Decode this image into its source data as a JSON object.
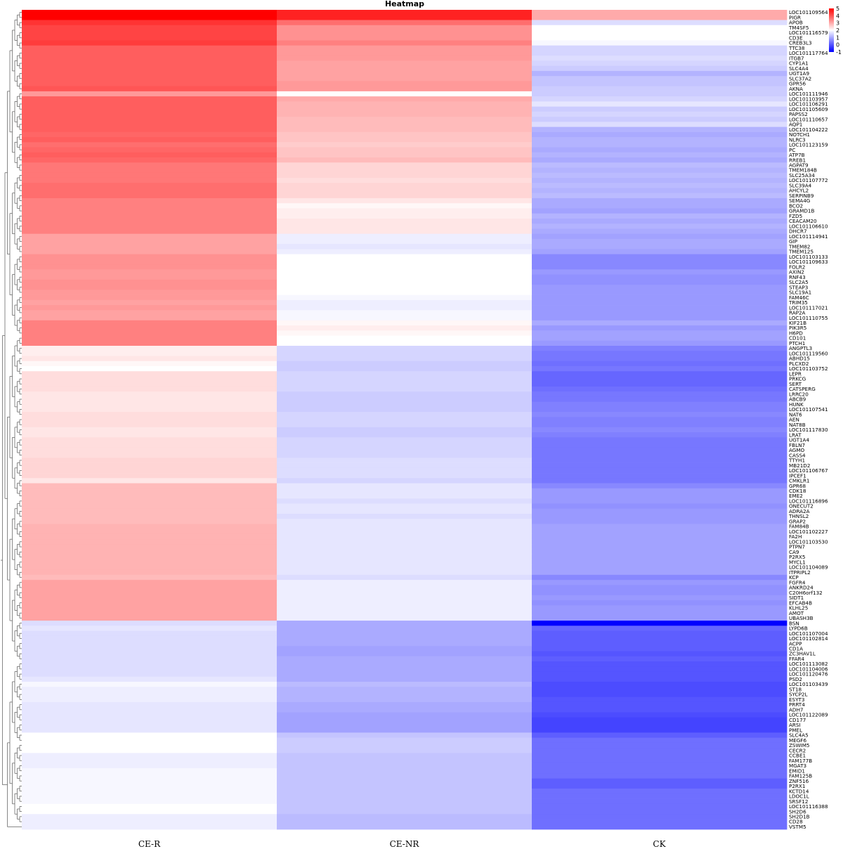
{
  "chart_data": {
    "type": "heatmap",
    "title": "Heatmap",
    "columns": [
      "CE-R",
      "CE-NR",
      "CK"
    ],
    "color_scale": {
      "min": -1,
      "mid": 2,
      "max": 5,
      "low_color": "#0000ff",
      "mid_color": "#ffffff",
      "high_color": "#ff0000",
      "ticks": [
        5,
        4,
        3,
        2,
        1,
        0,
        -1
      ]
    },
    "dendrogram": "left",
    "rows": [
      {
        "gene": "LOC101109564",
        "values": [
          5.0,
          4.6,
          3.0
        ]
      },
      {
        "gene": "PIGR",
        "values": [
          5.0,
          4.6,
          3.0
        ]
      },
      {
        "gene": "APOB",
        "values": [
          4.4,
          3.7,
          1.6
        ]
      },
      {
        "gene": "TM4SF5",
        "values": [
          4.2,
          3.3,
          2.0
        ]
      },
      {
        "gene": "LOC101116579",
        "values": [
          4.2,
          3.3,
          2.0
        ]
      },
      {
        "gene": "CD3E",
        "values": [
          4.2,
          3.3,
          2.0
        ]
      },
      {
        "gene": "CREB3L3",
        "values": [
          4.3,
          3.5,
          1.9
        ]
      },
      {
        "gene": "TTC38",
        "values": [
          3.9,
          3.2,
          1.5
        ]
      },
      {
        "gene": "LOC101117764",
        "values": [
          3.9,
          3.2,
          1.5
        ]
      },
      {
        "gene": "ITGB7",
        "values": [
          3.9,
          3.2,
          1.6
        ]
      },
      {
        "gene": "CYP1A1",
        "values": [
          3.9,
          3.1,
          1.5
        ]
      },
      {
        "gene": "SLC4A4",
        "values": [
          3.9,
          3.1,
          1.4
        ]
      },
      {
        "gene": "UGT1A9",
        "values": [
          3.9,
          3.1,
          1.1
        ]
      },
      {
        "gene": "SLC37A2",
        "values": [
          3.9,
          3.1,
          1.3
        ]
      },
      {
        "gene": "GPR56",
        "values": [
          3.9,
          3.2,
          1.3
        ]
      },
      {
        "gene": "AKNA",
        "values": [
          4.0,
          3.2,
          1.4
        ]
      },
      {
        "gene": "LOC101111946",
        "values": [
          3.2,
          2.0,
          1.4
        ]
      },
      {
        "gene": "LOC101103957",
        "values": [
          3.9,
          3.0,
          1.5
        ]
      },
      {
        "gene": "LOC101106291",
        "values": [
          3.9,
          2.9,
          1.7
        ]
      },
      {
        "gene": "LOC101105609",
        "values": [
          3.9,
          2.9,
          1.4
        ]
      },
      {
        "gene": "PAPSS2",
        "values": [
          3.9,
          2.9,
          1.5
        ]
      },
      {
        "gene": "LOC101110657",
        "values": [
          3.9,
          2.8,
          1.4
        ]
      },
      {
        "gene": "AQP1",
        "values": [
          3.9,
          2.8,
          1.6
        ]
      },
      {
        "gene": "LOC101104222",
        "values": [
          3.9,
          2.8,
          1.1
        ]
      },
      {
        "gene": "NOTCH1",
        "values": [
          3.8,
          2.7,
          1.0
        ]
      },
      {
        "gene": "NLRC3",
        "values": [
          3.9,
          2.7,
          1.1
        ]
      },
      {
        "gene": "LOC101123159",
        "values": [
          3.7,
          2.6,
          1.1
        ]
      },
      {
        "gene": "PC",
        "values": [
          3.8,
          2.7,
          1.0
        ]
      },
      {
        "gene": "ATP7B",
        "values": [
          3.9,
          2.7,
          1.1
        ]
      },
      {
        "gene": "RREB1",
        "values": [
          3.8,
          2.8,
          1.0
        ]
      },
      {
        "gene": "AGPAT9",
        "values": [
          3.6,
          2.5,
          1.2
        ]
      },
      {
        "gene": "TMEM184B",
        "values": [
          3.6,
          2.5,
          1.1
        ]
      },
      {
        "gene": "SLC25A34",
        "values": [
          3.6,
          2.5,
          1.2
        ]
      },
      {
        "gene": "LOC101107772",
        "values": [
          3.6,
          2.4,
          1.1
        ]
      },
      {
        "gene": "SLC39A4",
        "values": [
          3.7,
          2.5,
          1.2
        ]
      },
      {
        "gene": "AHCYL2",
        "values": [
          3.7,
          2.5,
          1.1
        ]
      },
      {
        "gene": "SERPINB9",
        "values": [
          3.7,
          2.5,
          1.2
        ]
      },
      {
        "gene": "SEMA4G",
        "values": [
          3.5,
          2.3,
          1.0
        ]
      },
      {
        "gene": "BCO2",
        "values": [
          3.5,
          2.1,
          1.0
        ]
      },
      {
        "gene": "GRAMD1B",
        "values": [
          3.5,
          2.2,
          0.9
        ]
      },
      {
        "gene": "FZD5",
        "values": [
          3.5,
          2.2,
          1.1
        ]
      },
      {
        "gene": "CEACAM20",
        "values": [
          3.5,
          2.3,
          1.0
        ]
      },
      {
        "gene": "LOC101106610",
        "values": [
          3.5,
          2.3,
          1.1
        ]
      },
      {
        "gene": "DHCR7",
        "values": [
          3.5,
          2.3,
          1.0
        ]
      },
      {
        "gene": "LOC101114941",
        "values": [
          3.1,
          1.8,
          0.9
        ]
      },
      {
        "gene": "GIP",
        "values": [
          3.1,
          1.8,
          1.0
        ]
      },
      {
        "gene": "TMEM82",
        "values": [
          3.1,
          1.7,
          1.0
        ]
      },
      {
        "gene": "TMEM125",
        "values": [
          3.1,
          1.8,
          0.9
        ]
      },
      {
        "gene": "LOC101103133",
        "values": [
          3.3,
          2.0,
          0.6
        ]
      },
      {
        "gene": "LOC101109633",
        "values": [
          3.3,
          2.0,
          0.6
        ]
      },
      {
        "gene": "FOLR2",
        "values": [
          3.3,
          2.0,
          0.6
        ]
      },
      {
        "gene": "AXIN2",
        "values": [
          3.2,
          2.0,
          0.8
        ]
      },
      {
        "gene": "RNF43",
        "values": [
          3.2,
          2.0,
          0.7
        ]
      },
      {
        "gene": "SLC2A5",
        "values": [
          3.3,
          2.0,
          0.7
        ]
      },
      {
        "gene": "STEAP3",
        "values": [
          3.3,
          2.0,
          0.8
        ]
      },
      {
        "gene": "SLC19A1",
        "values": [
          3.2,
          2.0,
          0.8
        ]
      },
      {
        "gene": "FAM46C",
        "values": [
          3.2,
          1.9,
          0.8
        ]
      },
      {
        "gene": "TRIM35",
        "values": [
          3.1,
          1.8,
          0.8
        ]
      },
      {
        "gene": "LOC101117021",
        "values": [
          3.2,
          1.8,
          0.8
        ]
      },
      {
        "gene": "RAP2A",
        "values": [
          3.1,
          1.9,
          0.8
        ]
      },
      {
        "gene": "LOC101110755",
        "values": [
          3.1,
          1.9,
          0.8
        ]
      },
      {
        "gene": "KIF21B",
        "values": [
          3.5,
          2.1,
          1.0
        ]
      },
      {
        "gene": "PIK3R5",
        "values": [
          3.5,
          2.2,
          0.8
        ]
      },
      {
        "gene": "H6PD",
        "values": [
          3.5,
          2.1,
          0.9
        ]
      },
      {
        "gene": "CD101",
        "values": [
          3.5,
          2.0,
          0.9
        ]
      },
      {
        "gene": "PTCH1",
        "values": [
          3.5,
          2.0,
          0.8
        ]
      },
      {
        "gene": "ANGPTL3",
        "values": [
          2.2,
          1.5,
          0.5
        ]
      },
      {
        "gene": "LOC101119560",
        "values": [
          2.2,
          1.5,
          0.4
        ]
      },
      {
        "gene": "ABHD15",
        "values": [
          2.3,
          1.5,
          0.4
        ]
      },
      {
        "gene": "PLCXD2",
        "values": [
          2.1,
          1.4,
          0.3
        ]
      },
      {
        "gene": "LOC101103752",
        "values": [
          2.0,
          1.4,
          0.4
        ]
      },
      {
        "gene": "LEPR",
        "values": [
          2.4,
          1.5,
          0.2
        ]
      },
      {
        "gene": "PRKCG",
        "values": [
          2.4,
          1.5,
          0.2
        ]
      },
      {
        "gene": "SERT",
        "values": [
          2.4,
          1.5,
          0.2
        ]
      },
      {
        "gene": "CATSPERG",
        "values": [
          2.4,
          1.5,
          0.3
        ]
      },
      {
        "gene": "LRRC20",
        "values": [
          2.3,
          1.4,
          0.4
        ]
      },
      {
        "gene": "ABCB9",
        "values": [
          2.3,
          1.4,
          0.4
        ]
      },
      {
        "gene": "HUNK",
        "values": [
          2.3,
          1.4,
          0.5
        ]
      },
      {
        "gene": "LOC101107541",
        "values": [
          2.3,
          1.4,
          0.5
        ]
      },
      {
        "gene": "NAT6",
        "values": [
          2.4,
          1.5,
          0.6
        ]
      },
      {
        "gene": "AEN",
        "values": [
          2.4,
          1.5,
          0.5
        ]
      },
      {
        "gene": "NAT8B",
        "values": [
          2.4,
          1.5,
          0.5
        ]
      },
      {
        "gene": "LOC101117830",
        "values": [
          2.3,
          1.4,
          0.6
        ]
      },
      {
        "gene": "LRAT",
        "values": [
          2.3,
          1.4,
          0.5
        ]
      },
      {
        "gene": "UGT1A4",
        "values": [
          2.4,
          1.5,
          0.4
        ]
      },
      {
        "gene": "FBLN7",
        "values": [
          2.4,
          1.5,
          0.4
        ]
      },
      {
        "gene": "AGMO",
        "values": [
          2.4,
          1.5,
          0.4
        ]
      },
      {
        "gene": "CASS4",
        "values": [
          2.4,
          1.5,
          0.4
        ]
      },
      {
        "gene": "TTYH1",
        "values": [
          2.5,
          1.6,
          0.4
        ]
      },
      {
        "gene": "MB21D2",
        "values": [
          2.5,
          1.6,
          0.4
        ]
      },
      {
        "gene": "LOC101106767",
        "values": [
          2.5,
          1.6,
          0.4
        ]
      },
      {
        "gene": "IPCEF1",
        "values": [
          2.5,
          1.6,
          0.4
        ]
      },
      {
        "gene": "CMKLR1",
        "values": [
          2.3,
          1.5,
          0.4
        ]
      },
      {
        "gene": "GPR68",
        "values": [
          2.8,
          1.7,
          0.6
        ]
      },
      {
        "gene": "CDK18",
        "values": [
          2.8,
          1.7,
          0.8
        ]
      },
      {
        "gene": "EME2",
        "values": [
          2.8,
          1.7,
          0.8
        ]
      },
      {
        "gene": "LOC101116896",
        "values": [
          2.8,
          1.6,
          0.8
        ]
      },
      {
        "gene": "ONECUT2",
        "values": [
          2.8,
          1.7,
          0.7
        ]
      },
      {
        "gene": "ADRA2A",
        "values": [
          2.8,
          1.7,
          0.8
        ]
      },
      {
        "gene": "THNSL2",
        "values": [
          2.8,
          1.6,
          0.8
        ]
      },
      {
        "gene": "GRAP2",
        "values": [
          2.8,
          1.7,
          0.8
        ]
      },
      {
        "gene": "FAM84B",
        "values": [
          2.9,
          1.7,
          0.9
        ]
      },
      {
        "gene": "LOC101102227",
        "values": [
          2.9,
          1.7,
          0.9
        ]
      },
      {
        "gene": "FA2H",
        "values": [
          2.9,
          1.7,
          0.9
        ]
      },
      {
        "gene": "LOC101103530",
        "values": [
          2.9,
          1.7,
          0.9
        ]
      },
      {
        "gene": "PTPN7",
        "values": [
          2.9,
          1.7,
          0.9
        ]
      },
      {
        "gene": "CA9",
        "values": [
          2.9,
          1.7,
          0.9
        ]
      },
      {
        "gene": "P2RX5",
        "values": [
          2.9,
          1.7,
          0.9
        ]
      },
      {
        "gene": "MYCL1",
        "values": [
          2.9,
          1.7,
          0.9
        ]
      },
      {
        "gene": "LOC101104089",
        "values": [
          2.9,
          1.7,
          0.9
        ]
      },
      {
        "gene": "ITPRIPL2",
        "values": [
          2.9,
          1.7,
          0.9
        ]
      },
      {
        "gene": "KCP",
        "values": [
          2.8,
          1.6,
          0.6
        ]
      },
      {
        "gene": "FGFR4",
        "values": [
          3.1,
          1.8,
          0.8
        ]
      },
      {
        "gene": "ANKRD24",
        "values": [
          3.1,
          1.8,
          0.7
        ]
      },
      {
        "gene": "C20H6orf132",
        "values": [
          3.1,
          1.8,
          0.7
        ]
      },
      {
        "gene": "SIDT1",
        "values": [
          3.1,
          1.8,
          0.8
        ]
      },
      {
        "gene": "EFCAB4B",
        "values": [
          3.1,
          1.8,
          0.7
        ]
      },
      {
        "gene": "KLHL25",
        "values": [
          3.1,
          1.8,
          0.8
        ]
      },
      {
        "gene": "AMOT",
        "values": [
          3.1,
          1.8,
          0.8
        ]
      },
      {
        "gene": "UBASH3B",
        "values": [
          3.1,
          1.8,
          0.8
        ]
      },
      {
        "gene": "BSN",
        "values": [
          1.6,
          1.0,
          -1.0
        ]
      },
      {
        "gene": "LYPD6B",
        "values": [
          1.7,
          1.0,
          0.2
        ]
      },
      {
        "gene": "LOC101107004",
        "values": [
          1.6,
          1.0,
          0.1
        ]
      },
      {
        "gene": "LOC101102814",
        "values": [
          1.6,
          1.0,
          0.1
        ]
      },
      {
        "gene": "ACPP",
        "values": [
          1.6,
          1.0,
          0.1
        ]
      },
      {
        "gene": "CD1A",
        "values": [
          1.6,
          0.9,
          0.1
        ]
      },
      {
        "gene": "ZC3HAV1L",
        "values": [
          1.6,
          0.9,
          0.0
        ]
      },
      {
        "gene": "FFAR4",
        "values": [
          1.6,
          1.0,
          0.1
        ]
      },
      {
        "gene": "LOC101113082",
        "values": [
          1.6,
          1.0,
          0.0
        ]
      },
      {
        "gene": "LOC101104006",
        "values": [
          1.6,
          1.0,
          0.0
        ]
      },
      {
        "gene": "LOC101120476",
        "values": [
          1.6,
          1.0,
          0.0
        ]
      },
      {
        "gene": "PSD2",
        "values": [
          1.7,
          1.0,
          0.0
        ]
      },
      {
        "gene": "LOC101103439",
        "values": [
          1.9,
          1.2,
          -0.1
        ]
      },
      {
        "gene": "ST18",
        "values": [
          1.8,
          1.1,
          -0.1
        ]
      },
      {
        "gene": "SYCP2L",
        "values": [
          1.8,
          1.1,
          -0.1
        ]
      },
      {
        "gene": "ESYT3",
        "values": [
          1.8,
          1.1,
          0.0
        ]
      },
      {
        "gene": "PRRT4",
        "values": [
          1.7,
          1.0,
          0.0
        ]
      },
      {
        "gene": "ADH7",
        "values": [
          1.7,
          1.0,
          0.0
        ]
      },
      {
        "gene": "LOC101122089",
        "values": [
          1.7,
          0.9,
          -0.1
        ]
      },
      {
        "gene": "CD177",
        "values": [
          1.7,
          0.9,
          -0.2
        ]
      },
      {
        "gene": "ARSI",
        "values": [
          1.7,
          0.9,
          -0.2
        ]
      },
      {
        "gene": "PMEL",
        "values": [
          1.7,
          0.9,
          -0.2
        ]
      },
      {
        "gene": "SLC4A5",
        "values": [
          2.0,
          1.3,
          0.1
        ]
      },
      {
        "gene": "MEGF6",
        "values": [
          2.0,
          1.4,
          0.3
        ]
      },
      {
        "gene": "ZSWIM5",
        "values": [
          2.0,
          1.4,
          0.3
        ]
      },
      {
        "gene": "CECR2",
        "values": [
          2.0,
          1.4,
          0.3
        ]
      },
      {
        "gene": "CCBE1",
        "values": [
          1.8,
          1.3,
          0.3
        ]
      },
      {
        "gene": "FAM177B",
        "values": [
          1.8,
          1.3,
          0.3
        ]
      },
      {
        "gene": "MGAT3",
        "values": [
          1.8,
          1.3,
          0.3
        ]
      },
      {
        "gene": "EMID1",
        "values": [
          1.9,
          1.3,
          0.3
        ]
      },
      {
        "gene": "FAM125B",
        "values": [
          1.9,
          1.3,
          0.3
        ]
      },
      {
        "gene": "ZNF516",
        "values": [
          1.9,
          1.3,
          0.1
        ]
      },
      {
        "gene": "P2RX1",
        "values": [
          1.9,
          1.3,
          0.1
        ]
      },
      {
        "gene": "KCTD14",
        "values": [
          1.9,
          1.3,
          0.3
        ]
      },
      {
        "gene": "LDOC1L",
        "values": [
          1.9,
          1.3,
          0.3
        ]
      },
      {
        "gene": "SRSF12",
        "values": [
          1.9,
          1.3,
          0.3
        ]
      },
      {
        "gene": "LOC101116388",
        "values": [
          2.0,
          1.3,
          0.3
        ]
      },
      {
        "gene": "SH2D6",
        "values": [
          2.0,
          1.3,
          0.3
        ]
      },
      {
        "gene": "SH2D1B",
        "values": [
          1.8,
          1.2,
          0.3
        ]
      },
      {
        "gene": "CD28",
        "values": [
          1.8,
          1.2,
          0.3
        ]
      },
      {
        "gene": "VSTM5",
        "values": [
          1.8,
          1.2,
          0.3
        ]
      }
    ]
  }
}
